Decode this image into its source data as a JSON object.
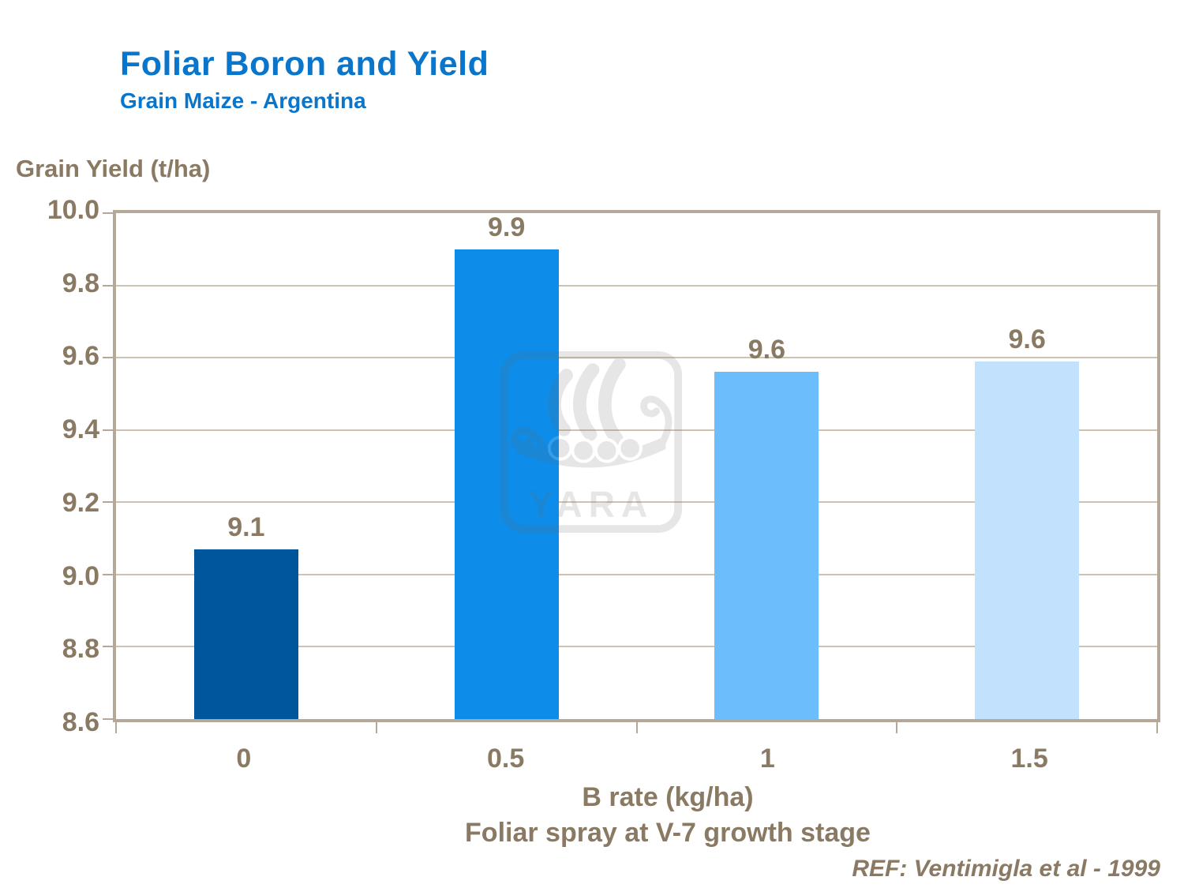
{
  "header": {
    "title": "Foliar Boron and Yield",
    "subtitle": "Grain Maize - Argentina"
  },
  "chart_data": {
    "type": "bar",
    "title": "Foliar Boron and Yield",
    "subtitle": "Grain Maize - Argentina",
    "categories": [
      "0",
      "0.5",
      "1",
      "1.5"
    ],
    "values": [
      9.07,
      9.9,
      9.56,
      9.59
    ],
    "value_labels": [
      "9.1",
      "9.9",
      "9.6",
      "9.6"
    ],
    "bar_colors": [
      "#00569b",
      "#0d8de9",
      "#6bbefb",
      "#c1e1fc"
    ],
    "xlabel": "B rate (kg/ha)",
    "xlabel_line2": "Foliar spray at V-7 growth stage",
    "ylabel": "Grain Yield (t/ha)",
    "ylim": [
      8.6,
      10.0
    ],
    "ytick_step": 0.2,
    "yticks": [
      "10.0",
      "9.8",
      "9.6",
      "9.4",
      "9.2",
      "9.0",
      "8.8",
      "8.6"
    ],
    "grid": "horizontal",
    "legend": "none"
  },
  "footer": {
    "reference": "REF: Ventimigla et al - 1999"
  },
  "watermark": {
    "label": "YARA"
  },
  "colors": {
    "title_blue": "#0a76cb",
    "text_brown": "#8a7a63",
    "gridline": "#cec3b3",
    "axis_border": "#b5a898",
    "background": "#ffffff"
  }
}
